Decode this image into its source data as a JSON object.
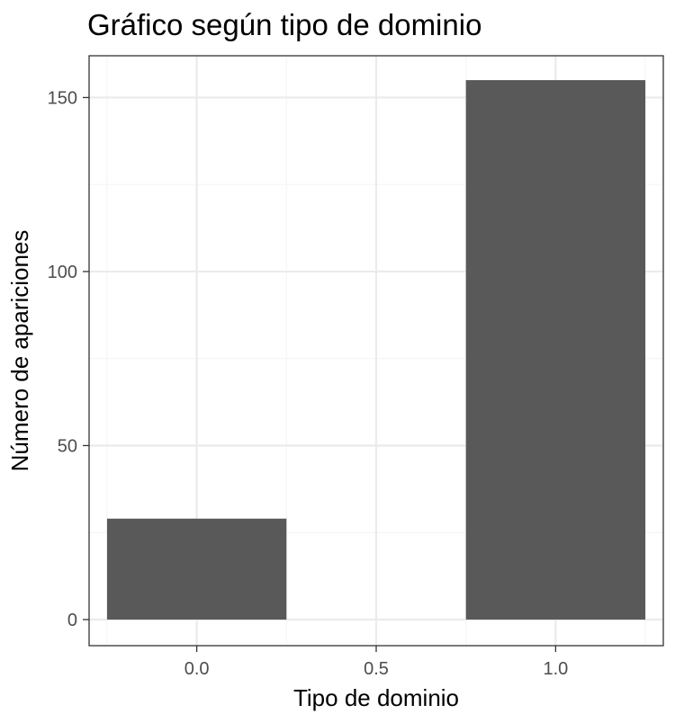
{
  "chart_data": {
    "type": "bar",
    "title": "Gráfico según tipo de dominio",
    "xlabel": "Tipo de dominio",
    "ylabel": "Número de apariciones",
    "bars": [
      {
        "x": 0.0,
        "value": 29
      },
      {
        "x": 1.0,
        "value": 155
      }
    ],
    "bar_width": 0.5,
    "xlim": [
      -0.3,
      1.3
    ],
    "ylim": [
      -7.5,
      162
    ],
    "x_ticks": [
      0.0,
      0.5,
      1.0
    ],
    "x_tick_labels": [
      "0.0",
      "0.5",
      "1.0"
    ],
    "y_ticks": [
      0,
      50,
      100,
      150
    ],
    "y_tick_labels": [
      "0",
      "50",
      "100",
      "150"
    ],
    "grid": true,
    "colors": {
      "bar": "#595959",
      "grid_major": "#ebebeb",
      "grid_minor": "#f5f5f5",
      "panel_border": "#333333",
      "tick_label": "#4d4d4d"
    }
  }
}
